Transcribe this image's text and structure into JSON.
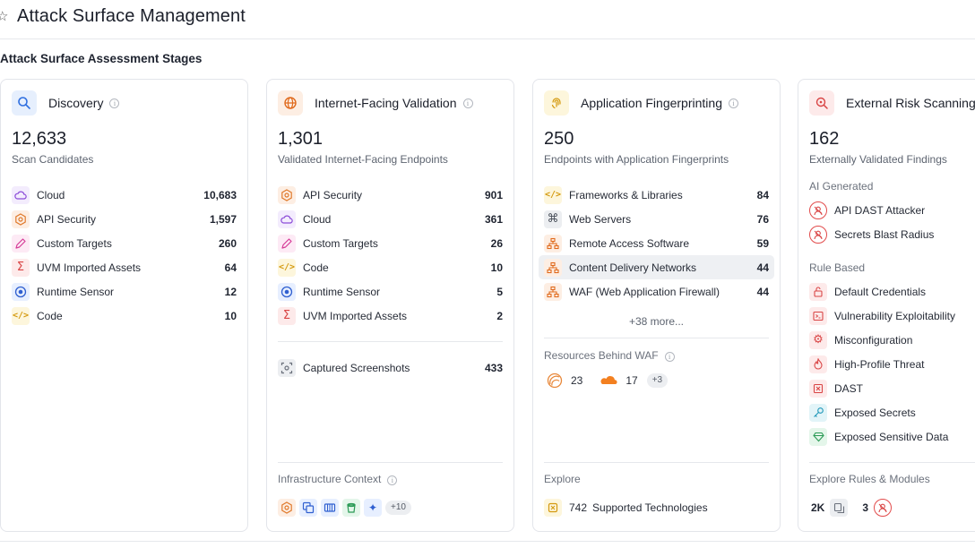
{
  "header": {
    "title": "Attack Surface Management"
  },
  "section": {
    "title": "Attack Surface Assessment Stages"
  },
  "colors": {
    "accent_red": "#e24b4b",
    "border": "#e3e5ea",
    "text_muted": "#5d6470"
  },
  "discovery": {
    "title": "Discovery",
    "count": "12,633",
    "subtitle": "Scan Candidates",
    "items": [
      {
        "label": "Cloud",
        "value": "10,683",
        "icon": "cloud-icon"
      },
      {
        "label": "API Security",
        "value": "1,597",
        "icon": "api-gear-icon"
      },
      {
        "label": "Custom Targets",
        "value": "260",
        "icon": "pencil-icon"
      },
      {
        "label": "UVM Imported Assets",
        "value": "64",
        "icon": "sigma-icon"
      },
      {
        "label": "Runtime Sensor",
        "value": "12",
        "icon": "sensor-icon"
      },
      {
        "label": "Code",
        "value": "10",
        "icon": "code-icon"
      }
    ]
  },
  "validation": {
    "title": "Internet-Facing Validation",
    "count": "1,301",
    "subtitle": "Validated Internet-Facing Endpoints",
    "items": [
      {
        "label": "API Security",
        "value": "901",
        "icon": "api-gear-icon"
      },
      {
        "label": "Cloud",
        "value": "361",
        "icon": "cloud-icon"
      },
      {
        "label": "Custom Targets",
        "value": "26",
        "icon": "pencil-icon"
      },
      {
        "label": "Code",
        "value": "10",
        "icon": "code-icon"
      },
      {
        "label": "Runtime Sensor",
        "value": "5",
        "icon": "sensor-icon"
      },
      {
        "label": "UVM Imported Assets",
        "value": "2",
        "icon": "sigma-icon"
      }
    ],
    "screenshots": {
      "label": "Captured Screenshots",
      "value": "433"
    },
    "infra_title": "Infrastructure Context",
    "infra_more": "+10"
  },
  "fingerprinting": {
    "title": "Application Fingerprinting",
    "count": "250",
    "subtitle": "Endpoints with Application Fingerprints",
    "items": [
      {
        "label": "Frameworks & Libraries",
        "value": "84",
        "icon": "code-icon"
      },
      {
        "label": "Web Servers",
        "value": "76",
        "icon": "command-icon"
      },
      {
        "label": "Remote Access Software",
        "value": "59",
        "icon": "network-icon"
      },
      {
        "label": "Content Delivery Networks",
        "value": "44",
        "icon": "network-icon"
      },
      {
        "label": "WAF (Web Application Firewall)",
        "value": "44",
        "icon": "network-icon"
      }
    ],
    "more": "+38 more...",
    "waf_title": "Resources Behind WAF",
    "waf_a": "23",
    "waf_b": "17",
    "waf_more": "+3",
    "explore_title": "Explore",
    "explore_value": "742",
    "explore_label": "Supported Technologies"
  },
  "risk": {
    "title": "External Risk Scanning",
    "count": "162",
    "subtitle": "Externally Validated Findings",
    "ai_title": "AI Generated",
    "ai_items": [
      {
        "label": "API DAST Attacker"
      },
      {
        "label": "Secrets Blast Radius"
      }
    ],
    "rule_title": "Rule Based",
    "rule_items": [
      {
        "label": "Default Credentials",
        "icon": "lock-icon"
      },
      {
        "label": "Vulnerability Exploitability",
        "icon": "terminal-icon"
      },
      {
        "label": "Misconfiguration",
        "icon": "gear-icon"
      },
      {
        "label": "High-Profile Threat",
        "icon": "flame-icon"
      },
      {
        "label": "DAST",
        "icon": "dast-icon"
      },
      {
        "label": "Exposed Secrets",
        "icon": "key-icon"
      },
      {
        "label": "Exposed Sensitive Data",
        "icon": "gem-icon"
      }
    ],
    "explore_title": "Explore Rules & Modules",
    "rules_count": "2K",
    "modules_count": "3"
  }
}
